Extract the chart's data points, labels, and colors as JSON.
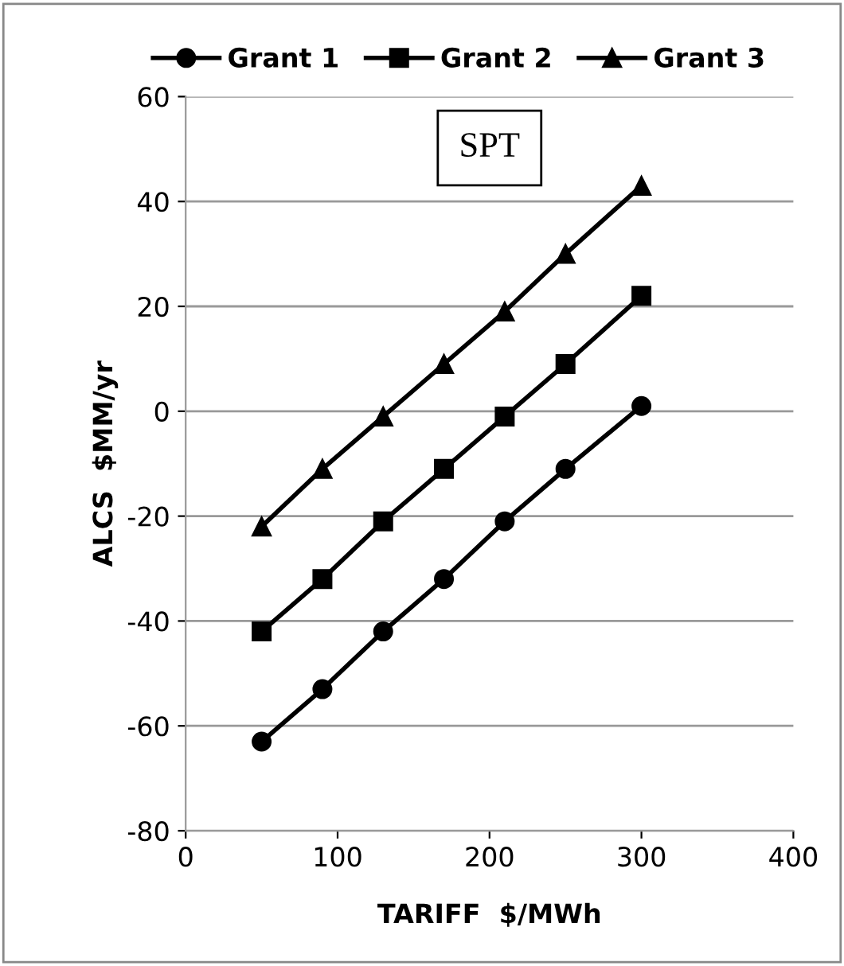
{
  "chart_data": {
    "type": "line",
    "xlabel": "TARIFF  $/MWh",
    "ylabel": "ALCS  $MM/yr",
    "annotations": [
      "SPT"
    ],
    "x": [
      50,
      90,
      130,
      170,
      210,
      250,
      300
    ],
    "series": [
      {
        "name": "Grant 1",
        "color": "#000000",
        "marker": "circle",
        "values": [
          -63,
          -53,
          -42,
          -32,
          -21,
          -11,
          1
        ]
      },
      {
        "name": "Grant 2",
        "color": "#000000",
        "marker": "square",
        "values": [
          -42,
          -32,
          -21,
          -11,
          -1,
          9,
          22
        ]
      },
      {
        "name": "Grant 3",
        "color": "#000000",
        "marker": "triangle",
        "values": [
          -22,
          -11,
          -1,
          9,
          19,
          30,
          43
        ]
      }
    ],
    "xlim": [
      0,
      400
    ],
    "xticks": [
      0,
      100,
      200,
      300,
      400
    ],
    "ylim": [
      -80,
      60
    ],
    "yticks": [
      -80,
      -60,
      -40,
      -20,
      0,
      20,
      40,
      60
    ],
    "grid": "y",
    "legend": "top",
    "line_style": "solid"
  }
}
